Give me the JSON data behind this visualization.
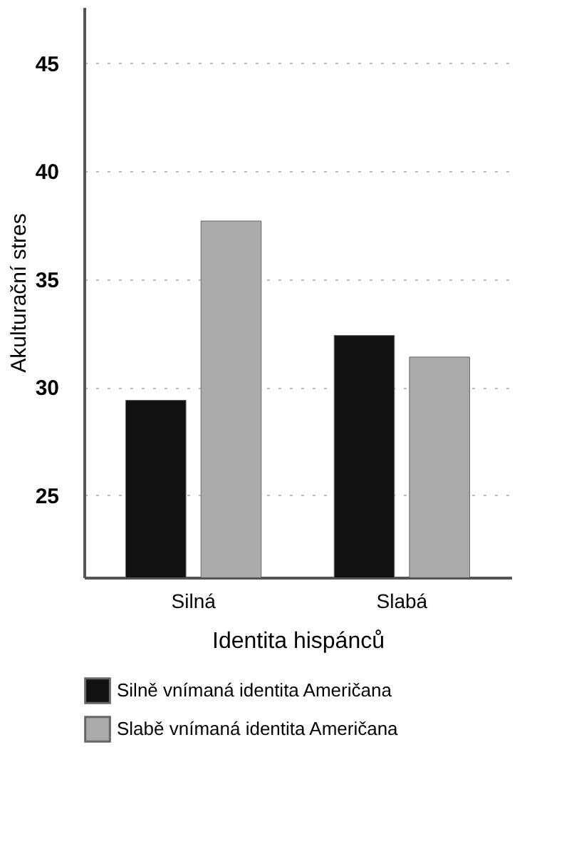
{
  "chart_data": {
    "type": "bar",
    "xlabel": "Identita hispánců",
    "ylabel": "Akulturační stres",
    "categories": [
      "Silná",
      "Slabá"
    ],
    "series": [
      {
        "name": "Silně vnímaná identita Američana",
        "color": "#111111",
        "values": [
          29.4,
          32.4
        ]
      },
      {
        "name": "Slabě vnímaná identita Američana",
        "color": "#aaaaaa",
        "values": [
          37.7,
          31.4
        ]
      }
    ],
    "ylim": [
      21.2,
      47.6
    ],
    "yticks": [
      25,
      30,
      35,
      40,
      45
    ],
    "grid": "y",
    "legend": "bottom"
  }
}
